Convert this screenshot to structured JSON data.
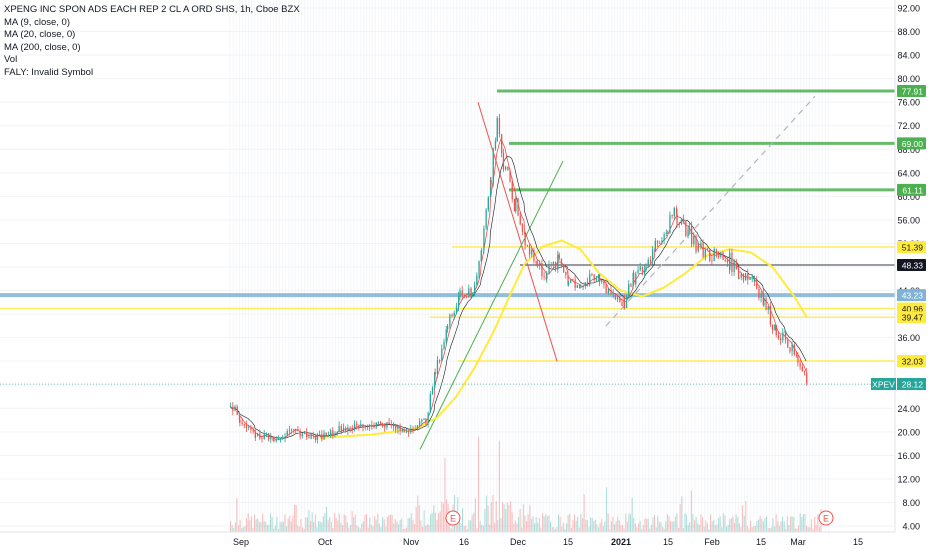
{
  "legend": {
    "title": "XPENG INC SPON ADS EACH REP 2 CL A ORD SHS, 1h, Cboe BZX",
    "ma9": "MA (9, close, 0)",
    "ma20": "MA (20, close, 0)",
    "ma200": "MA (200, close, 0)",
    "vol": "Vol",
    "faly": "FALY: Invalid Symbol"
  },
  "chart_data": {
    "type": "line",
    "ylim": [
      4.0,
      92.0
    ],
    "yticks": [
      "92.00",
      "88.00",
      "84.00",
      "80.00",
      "76.00",
      "72.00",
      "68.00",
      "64.00",
      "60.00",
      "56.00",
      "52.00",
      "48.00",
      "44.00",
      "40.00",
      "36.00",
      "32.00",
      "28.00",
      "24.00",
      "20.00",
      "16.00",
      "12.00",
      "8.00",
      "4.00"
    ],
    "xticks": [
      "Sep",
      "Oct",
      "Nov",
      "16",
      "Dec",
      "15",
      "2021",
      "15",
      "Feb",
      "15",
      "Mar",
      "15"
    ],
    "price_series": {
      "name": "XPEV",
      "last_value": "28.12",
      "x": [
        "Aug 31",
        "Sep 3",
        "Sep 8",
        "Sep 14",
        "Sep 21",
        "Sep 28",
        "Oct 5",
        "Oct 12",
        "Oct 19",
        "Oct 26",
        "Nov 2",
        "Nov 5",
        "Nov 9",
        "Nov 13",
        "Nov 17",
        "Nov 20",
        "Nov 23",
        "Nov 25",
        "Nov 27",
        "Dec 1",
        "Dec 4",
        "Dec 8",
        "Dec 11",
        "Dec 15",
        "Dec 18",
        "Dec 22",
        "Dec 28",
        "Dec 31",
        "Jan 5",
        "Jan 8",
        "Jan 12",
        "Jan 15",
        "Jan 19",
        "Jan 22",
        "Jan 26",
        "Jan 29",
        "Feb 3",
        "Feb 8",
        "Feb 11",
        "Feb 16",
        "Feb 19",
        "Feb 23",
        "Feb 26",
        "Mar 2",
        "Mar 5"
      ],
      "values": [
        25.0,
        22.0,
        19.5,
        19.0,
        20.0,
        19.0,
        20.5,
        21.0,
        21.5,
        20.0,
        22.0,
        30.0,
        38.0,
        44.0,
        43.0,
        52.0,
        63.0,
        74.0,
        65.0,
        58.0,
        53.0,
        48.0,
        47.0,
        49.0,
        46.0,
        45.0,
        46.0,
        44.0,
        42.0,
        46.0,
        48.0,
        52.0,
        55.0,
        57.0,
        54.0,
        51.0,
        50.0,
        49.0,
        47.0,
        46.0,
        42.0,
        37.0,
        36.0,
        32.0,
        28.0
      ]
    },
    "ma200": {
      "name": "MA (200, close, 0)",
      "x": [
        "Sep 29",
        "Oct 15",
        "Oct 30",
        "Nov 6",
        "Nov 12",
        "Nov 18",
        "Nov 24",
        "Nov 30",
        "Dec 4",
        "Dec 10",
        "Dec 16",
        "Dec 22",
        "Dec 28",
        "Jan 4",
        "Jan 11",
        "Jan 18",
        "Jan 25",
        "Feb 1",
        "Feb 8",
        "Feb 15",
        "Feb 22",
        "Mar 1",
        "Mar 5"
      ],
      "values": [
        19.0,
        19.5,
        20.5,
        22.5,
        26.0,
        31.0,
        37.0,
        44.0,
        48.5,
        51.5,
        52.5,
        51.0,
        47.0,
        44.0,
        43.0,
        44.5,
        47.0,
        50.0,
        51.0,
        50.5,
        48.0,
        43.0,
        39.5
      ]
    },
    "horizontal_levels": [
      {
        "label": "77.91",
        "value": 77.91,
        "color": "#4caf50"
      },
      {
        "label": "69.00",
        "value": 69.0,
        "color": "#4caf50"
      },
      {
        "label": "61.11",
        "value": 61.11,
        "color": "#4caf50"
      },
      {
        "label": "51.39",
        "value": 51.39,
        "color": "#ffeb3b"
      },
      {
        "label": "48.33",
        "value": 48.33,
        "color": "#131722"
      },
      {
        "label": "43.23",
        "value": 43.23,
        "color": "#7fb3d5"
      },
      {
        "label": "40.96",
        "value": 40.96,
        "color": "#ffeb3b"
      },
      {
        "label": "39.47",
        "value": 39.47,
        "color": "#ffeb3b"
      },
      {
        "label": "32.03",
        "value": 32.03,
        "color": "#ffeb3b"
      }
    ],
    "price_label": {
      "symbol": "XPEV",
      "value": "28.12",
      "color": "#26a69a"
    },
    "earnings_markers": [
      "E",
      "E"
    ]
  }
}
